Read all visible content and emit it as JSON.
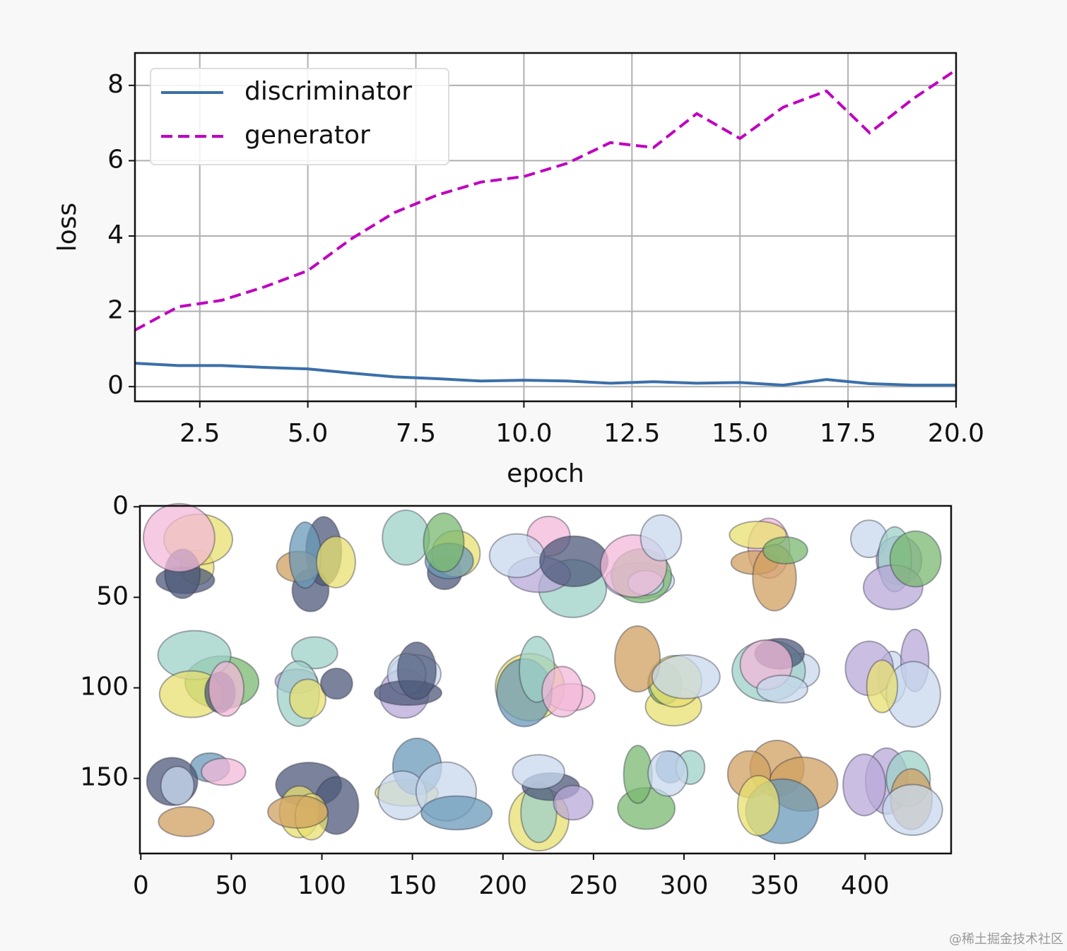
{
  "chart_data": [
    {
      "type": "line",
      "xlabel": "epoch",
      "ylabel": "loss",
      "x": [
        1,
        2,
        3,
        4,
        5,
        6,
        7,
        8,
        9,
        10,
        11,
        12,
        13,
        14,
        15,
        16,
        17,
        18,
        19,
        20
      ],
      "series": [
        {
          "name": "discriminator",
          "color": "#3b6fa8",
          "linestyle": "solid",
          "values": [
            0.62,
            0.56,
            0.56,
            0.51,
            0.47,
            0.36,
            0.26,
            0.21,
            0.15,
            0.17,
            0.15,
            0.09,
            0.13,
            0.09,
            0.11,
            0.04,
            0.19,
            0.08,
            0.04,
            0.04
          ]
        },
        {
          "name": "generator",
          "color": "#bf00bf",
          "linestyle": "dashed",
          "values": [
            1.5,
            2.12,
            2.29,
            2.65,
            3.08,
            3.92,
            4.62,
            5.09,
            5.43,
            5.58,
            5.93,
            6.48,
            6.35,
            7.25,
            6.59,
            7.42,
            7.85,
            6.74,
            7.64,
            8.41
          ]
        }
      ],
      "xlim": [
        1,
        20
      ],
      "ylim": [
        -0.39,
        8.86
      ],
      "xticks": [
        2.5,
        {
          "value": 5,
          "label": "5.0"
        },
        7.5,
        {
          "value": 10,
          "label": "10.0"
        },
        12.5,
        {
          "value": 15,
          "label": "15.0"
        },
        17.5,
        {
          "value": 20,
          "label": "20.0"
        }
      ],
      "yticks": [
        0,
        2,
        4,
        6,
        8
      ],
      "grid": true,
      "legend": "upper left"
    },
    {
      "type": "image",
      "xlim": [
        -0.5,
        447.5
      ],
      "ylim": [
        191.5,
        -0.5
      ],
      "xticks": [
        0,
        50,
        100,
        150,
        200,
        250,
        300,
        350,
        400
      ],
      "yticks": [
        0,
        50,
        100,
        150
      ]
    }
  ],
  "watermark": "@稀土掘金技术社区"
}
